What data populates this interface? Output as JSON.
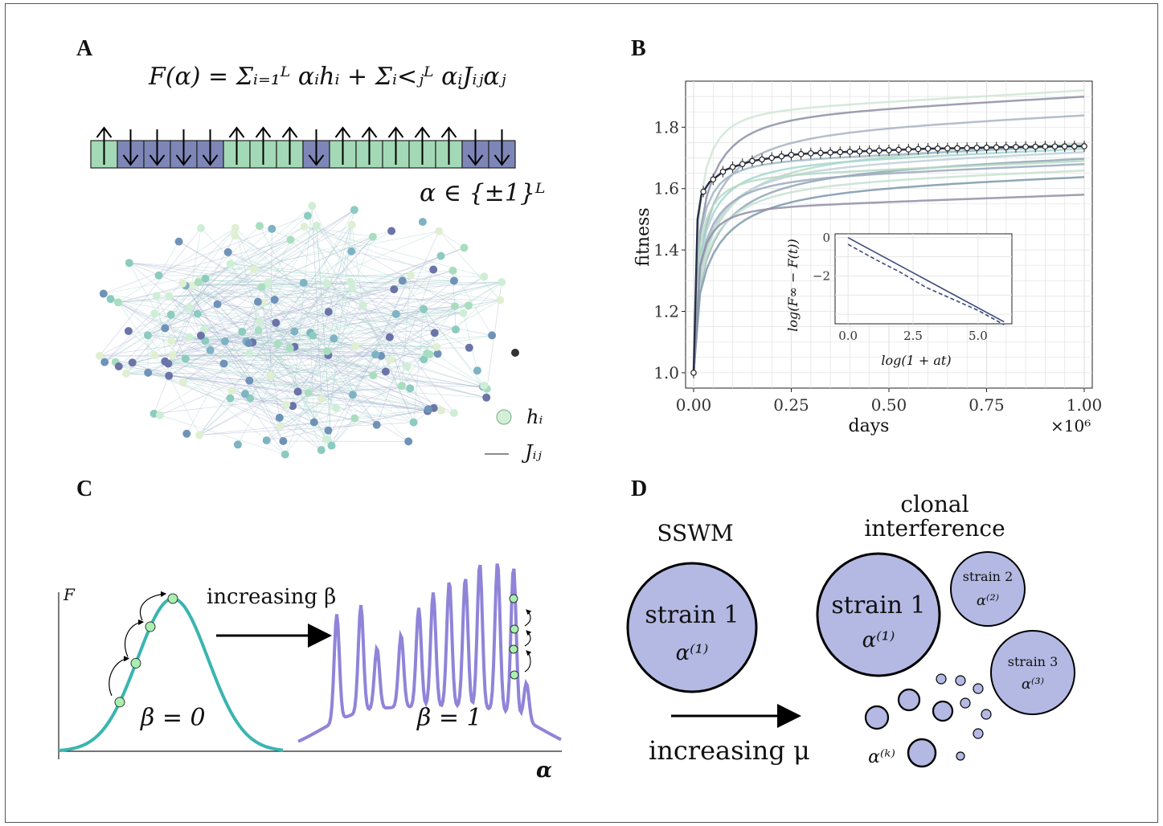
{
  "panels": {
    "A": {
      "letter": "A",
      "equation": "F(α) = Σᵢ₌₁ᴸ αᵢhᵢ + Σᵢ<ⱼᴸ αᵢJᵢⱼαⱼ",
      "spins": [
        "up",
        "down",
        "down",
        "down",
        "down",
        "up",
        "up",
        "up",
        "down",
        "up",
        "up",
        "up",
        "up",
        "up",
        "down",
        "down"
      ],
      "domain_label": "α ∈ {±1}ᴸ",
      "legend_h": "hᵢ",
      "legend_j": "Jᵢⱼ",
      "colors": {
        "up": "#a3d9b6",
        "down": "#7e86b8",
        "edge": "#9aa0c8"
      }
    },
    "B": {
      "letter": "B",
      "inset_xlabel": "log(1 + at)",
      "inset_ylabel": "log(F∞ − F(t))"
    },
    "C": {
      "letter": "C",
      "f_label": "F",
      "arrow_label": "increasing β",
      "beta0": "β = 0",
      "beta1": "β = 1",
      "alpha_label": "α",
      "colors": {
        "left": "#3ab5b0",
        "right": "#8f84d8",
        "dot": "#a8f0b0"
      }
    },
    "D": {
      "letter": "D",
      "sswm_label": "SSWM",
      "clonal_label_1": "clonal",
      "clonal_label_2": "interference",
      "strain1": "strain 1",
      "alpha1": "α⁽¹⁾",
      "strain2": "strain 2",
      "alpha2": "α⁽²⁾",
      "strain3": "strain 3",
      "alpha3": "α⁽³⁾",
      "alphak": "α⁽ᵏ⁾",
      "arrow_label": "increasing μ",
      "fill": "#b3b9e3"
    }
  },
  "chart_data": {
    "type": "line",
    "xlabel": "days",
    "ylabel": "fitness",
    "x_multiplier_label": "×10⁶",
    "xlim": [
      0,
      1.0
    ],
    "ylim": [
      0.95,
      1.95
    ],
    "xticks": [
      "0.00",
      "0.25",
      "0.50",
      "0.75",
      "1.00"
    ],
    "yticks": [
      "1.0",
      "1.2",
      "1.4",
      "1.6",
      "1.8"
    ],
    "mean_series": {
      "x": [
        0.0,
        0.01,
        0.02,
        0.04,
        0.06,
        0.08,
        0.1,
        0.15,
        0.2,
        0.25,
        0.3,
        0.4,
        0.5,
        0.6,
        0.7,
        0.8,
        0.9,
        1.0
      ],
      "y": [
        1.0,
        1.5,
        1.58,
        1.62,
        1.64,
        1.66,
        1.67,
        1.69,
        1.7,
        1.71,
        1.715,
        1.72,
        1.725,
        1.73,
        1.732,
        1.735,
        1.737,
        1.738
      ]
    },
    "replicate_final_values": [
      1.92,
      1.9,
      1.84,
      1.75,
      1.74,
      1.73,
      1.72,
      1.7,
      1.69,
      1.68,
      1.66,
      1.64,
      1.58
    ],
    "inset": {
      "type": "line",
      "xticks": [
        "0.0",
        "2.5",
        "5.0"
      ],
      "yticks": [
        "0",
        "−2"
      ],
      "xlim": [
        -0.5,
        6.3
      ],
      "ylim": [
        -4.5,
        0.2
      ],
      "series": [
        {
          "style": "solid",
          "x": [
            0,
            6
          ],
          "y": [
            0,
            -4.4
          ]
        },
        {
          "style": "dashed",
          "x": [
            0,
            1,
            2,
            3,
            4,
            5,
            6
          ],
          "y": [
            -0.35,
            -1.1,
            -1.8,
            -2.6,
            -3.2,
            -3.8,
            -4.55
          ]
        }
      ]
    }
  }
}
